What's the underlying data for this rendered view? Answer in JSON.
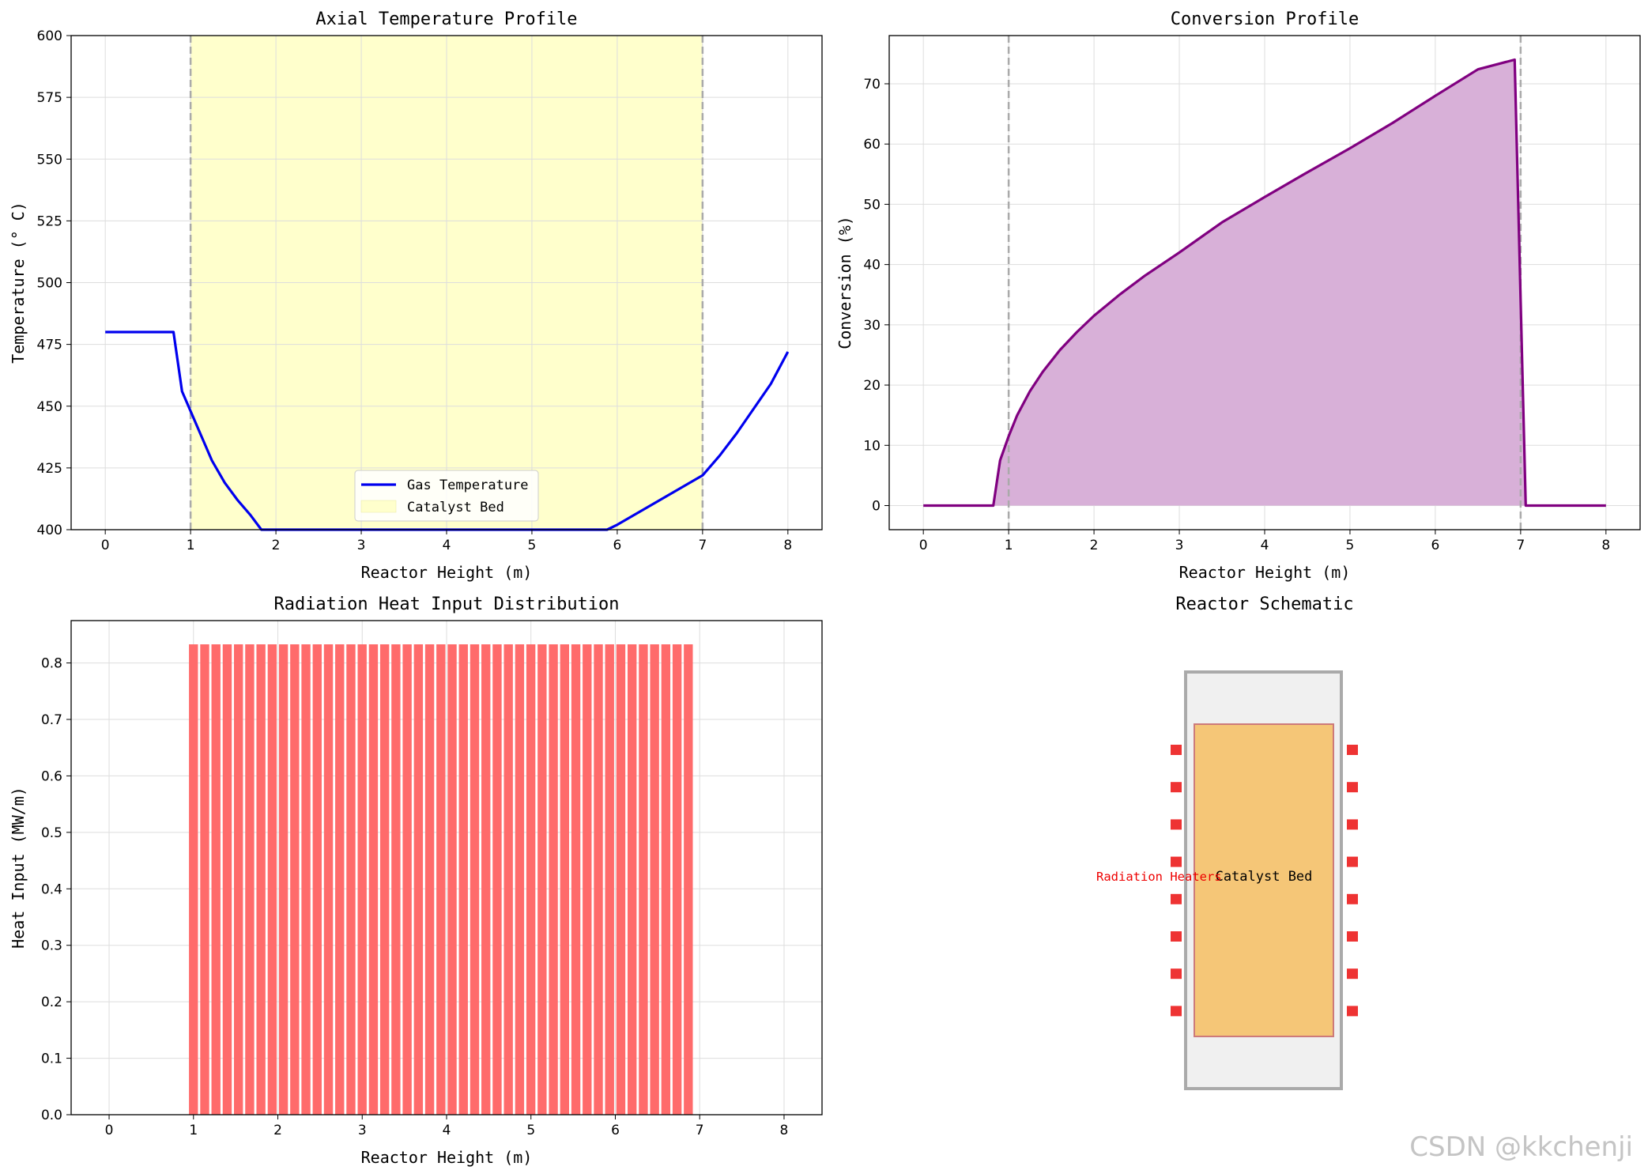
{
  "watermark": "CSDN @kkchenji",
  "chart_data": [
    {
      "type": "line",
      "title": "Axial Temperature Profile",
      "xlabel": "Reactor Height (m)",
      "ylabel": "Temperature (° C)",
      "xlim": [
        -0.4,
        8.4
      ],
      "ylim": [
        400,
        600
      ],
      "xticks": [
        0,
        1,
        2,
        3,
        4,
        5,
        6,
        7,
        8
      ],
      "yticks": [
        400,
        425,
        450,
        475,
        500,
        525,
        550,
        575,
        600
      ],
      "grid": true,
      "legend_position": "lower center",
      "shaded_region": {
        "name": "Catalyst Bed",
        "x": [
          1,
          7
        ],
        "color": "#ffffcc"
      },
      "vlines": [
        1,
        7
      ],
      "series": [
        {
          "name": "Gas Temperature",
          "color": "#0000ee",
          "x": [
            0,
            0.8,
            0.9,
            1.0,
            1.1,
            1.25,
            1.4,
            1.55,
            1.7,
            1.83,
            5.88,
            6.0,
            6.2,
            6.5,
            6.8,
            7.0,
            7.2,
            7.4,
            7.6,
            7.8,
            8.0
          ],
          "y": [
            480,
            480,
            456,
            448,
            440,
            428,
            419,
            412,
            406,
            400,
            400,
            402,
            406,
            412,
            418,
            422,
            430,
            439,
            449,
            459,
            472
          ]
        }
      ]
    },
    {
      "type": "area",
      "title": "Conversion Profile",
      "xlabel": "Reactor Height (m)",
      "ylabel": "Conversion (%)",
      "xlim": [
        -0.4,
        8.4
      ],
      "ylim": [
        -4,
        78
      ],
      "xticks": [
        0,
        1,
        2,
        3,
        4,
        5,
        6,
        7,
        8
      ],
      "yticks": [
        0,
        10,
        20,
        30,
        40,
        50,
        60,
        70
      ],
      "grid": true,
      "vlines": [
        1,
        7
      ],
      "series": [
        {
          "color": "#800080",
          "fill": "#d8b0d8",
          "x": [
            0,
            0.82,
            0.9,
            1.0,
            1.1,
            1.25,
            1.4,
            1.6,
            1.8,
            2.0,
            2.3,
            2.6,
            3.0,
            3.5,
            4.0,
            4.5,
            5.0,
            5.5,
            6.0,
            6.5,
            6.93,
            7.06,
            8.0
          ],
          "y": [
            0,
            0,
            7.5,
            11.5,
            15,
            19,
            22.2,
            25.8,
            28.8,
            31.5,
            35,
            38.2,
            42,
            47,
            51.2,
            55.3,
            59.3,
            63.5,
            68,
            72.4,
            74,
            0,
            0
          ]
        }
      ]
    },
    {
      "type": "bar",
      "title": "Radiation Heat Input Distribution",
      "xlabel": "Reactor Height (m)",
      "ylabel": "Heat Input (MW/m)",
      "xlim": [
        -0.45,
        8.45
      ],
      "ylim": [
        0,
        0.875
      ],
      "xticks": [
        0,
        1,
        2,
        3,
        4,
        5,
        6,
        7,
        8
      ],
      "yticks": [
        0,
        0.1,
        0.2,
        0.3,
        0.4,
        0.5,
        0.6,
        0.7,
        0.8
      ],
      "grid": true,
      "color": "#ff6b6b",
      "bar_start": 1.0,
      "bar_step": 0.1333,
      "bar_count": 45,
      "value": 0.833
    }
  ],
  "schematic": {
    "title": "Reactor Schematic",
    "bed_label": "Catalyst Bed",
    "heater_label": "Radiation Heaters",
    "vessel_color": "#f0f0f0",
    "bed_color": "#f5c677",
    "heater_color": "#ee3333",
    "heater_count_per_side": 8
  }
}
